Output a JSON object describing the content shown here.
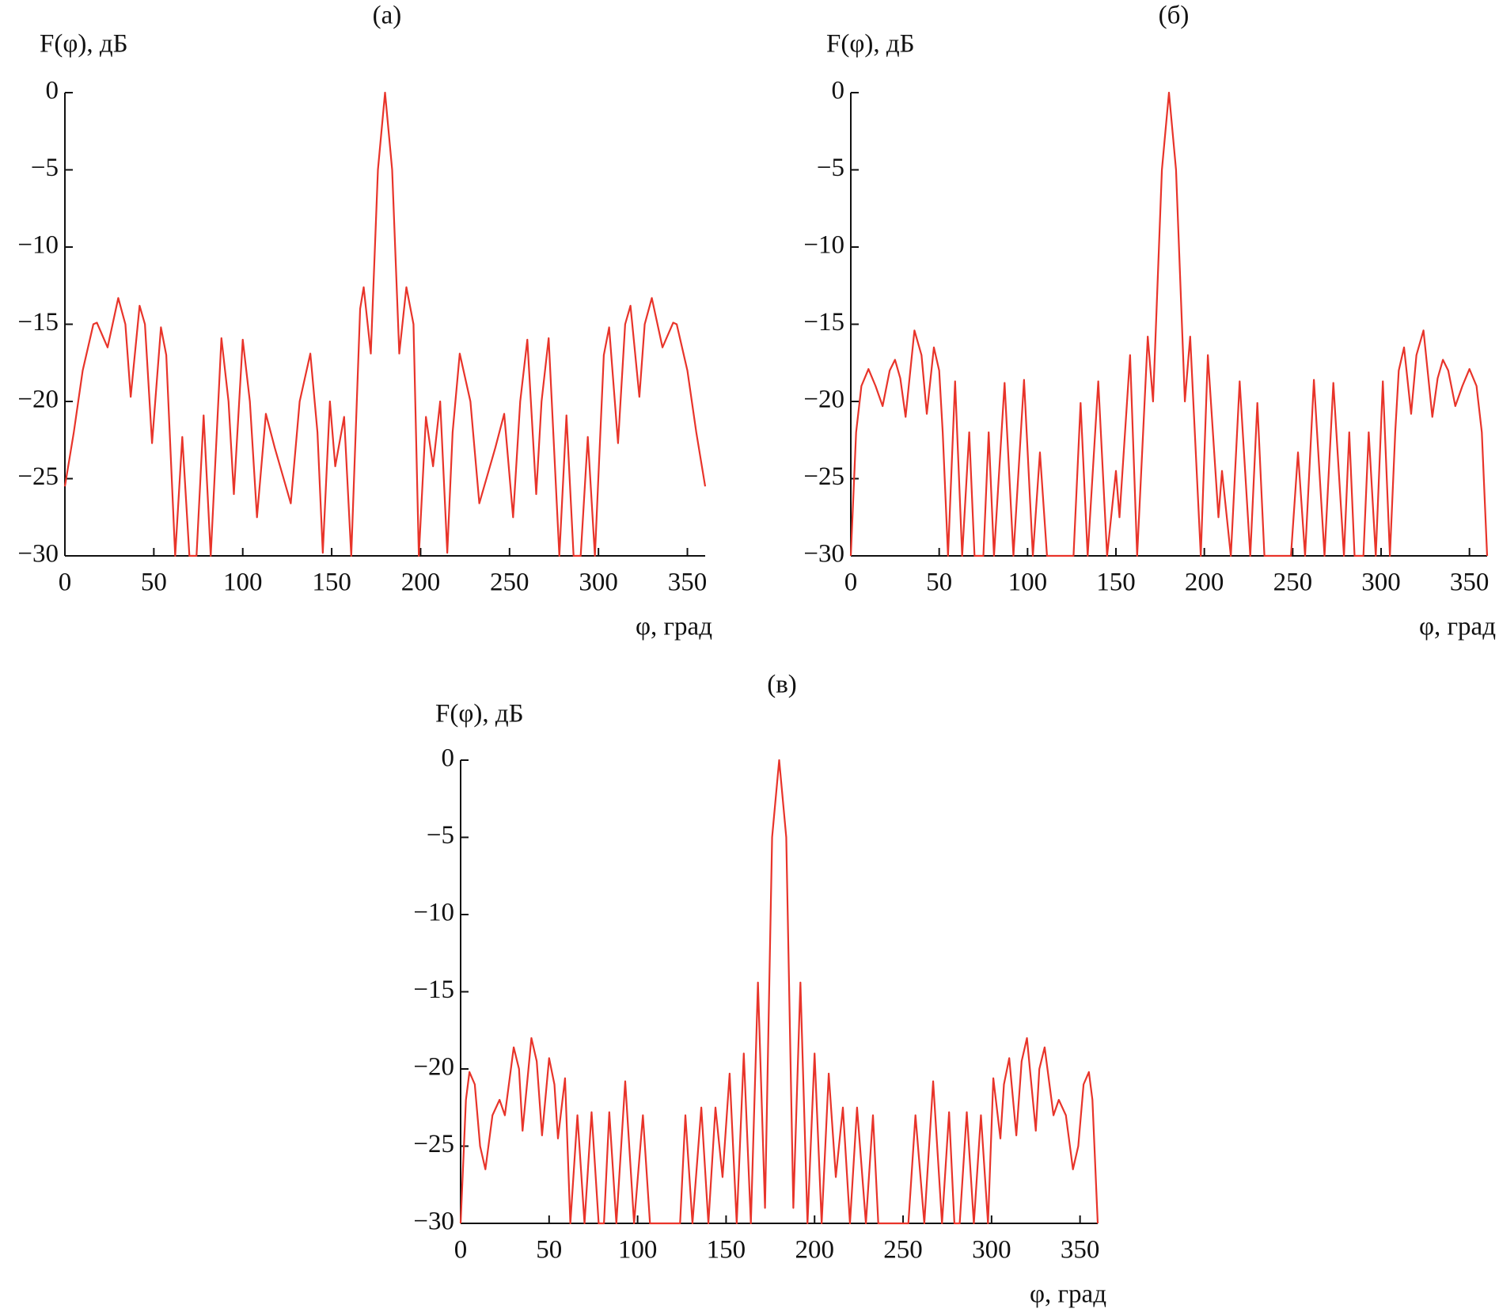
{
  "chart_data": [
    {
      "type": "line",
      "title": "(а)",
      "y_label": "F(φ), дБ",
      "x_label": "φ, град",
      "xlim": [
        0,
        360
      ],
      "ylim": [
        -30,
        0
      ],
      "xticks": [
        0,
        50,
        100,
        150,
        200,
        250,
        300,
        350
      ],
      "yticks": [
        0,
        {
          "value": -5,
          "label": "−5"
        },
        {
          "value": -10,
          "label": "−10"
        },
        {
          "value": -15,
          "label": "−15"
        },
        {
          "value": -20,
          "label": "−20"
        },
        {
          "value": -25,
          "label": "−25"
        },
        {
          "value": -30,
          "label": "−30"
        }
      ],
      "x": [
        0,
        5,
        10,
        16,
        18,
        24,
        30,
        34,
        37,
        42,
        45,
        49,
        54,
        57,
        62,
        66,
        70,
        74,
        78,
        82,
        88,
        92,
        95,
        100,
        104,
        108,
        113,
        118,
        123,
        127,
        132,
        138,
        142,
        145,
        149,
        152,
        157,
        161,
        166,
        168,
        172,
        176,
        180,
        184,
        188,
        192,
        196,
        199,
        203,
        207,
        211,
        215,
        218,
        222,
        228,
        233,
        237,
        242,
        247,
        252,
        256,
        260,
        265,
        268,
        272,
        278,
        282,
        286,
        290,
        294,
        298,
        303,
        306,
        311,
        315,
        318,
        323,
        326,
        330,
        336,
        342,
        344,
        350,
        355,
        360
      ],
      "series": [
        {
          "color": "#e8342a",
          "values": [
            -25.5,
            -22,
            -18,
            -15,
            -14.9,
            -16.5,
            -13.3,
            -15,
            -19.7,
            -13.8,
            -15,
            -22.7,
            -15.2,
            -17,
            -30,
            -22.3,
            -30,
            -30,
            -20.9,
            -30,
            -15.9,
            -20,
            -26,
            -16,
            -20,
            -27.5,
            -20.8,
            -23,
            -25,
            -26.6,
            -20,
            -16.9,
            -22,
            -29.8,
            -20,
            -24.2,
            -21,
            -30,
            -14,
            -12.6,
            -16.9,
            -5,
            0,
            -5,
            -16.9,
            -12.6,
            -15,
            -30,
            -21,
            -24.2,
            -20,
            -29.8,
            -22,
            -16.9,
            -20,
            -26.6,
            -25,
            -23,
            -20.8,
            -27.5,
            -20,
            -16,
            -26,
            -20,
            -15.9,
            -30,
            -20.9,
            -30,
            -30,
            -22.3,
            -30,
            -17,
            -15.2,
            -22.7,
            -15,
            -13.8,
            -19.7,
            -15,
            -13.3,
            -16.5,
            -14.9,
            -15,
            -18,
            -22,
            -25.5
          ]
        }
      ]
    },
    {
      "type": "line",
      "title": "(б)",
      "y_label": "F(φ), дБ",
      "x_label": "φ, град",
      "xlim": [
        0,
        360
      ],
      "ylim": [
        -30,
        0
      ],
      "xticks": [
        0,
        50,
        100,
        150,
        200,
        250,
        300,
        350
      ],
      "yticks": [
        0,
        {
          "value": -5,
          "label": "−5"
        },
        {
          "value": -10,
          "label": "−10"
        },
        {
          "value": -15,
          "label": "−15"
        },
        {
          "value": -20,
          "label": "−20"
        },
        {
          "value": -25,
          "label": "−25"
        },
        {
          "value": -30,
          "label": "−30"
        }
      ],
      "x": [
        0,
        3,
        6,
        10,
        14,
        18,
        22,
        25,
        28,
        31,
        36,
        40,
        43,
        47,
        50,
        52,
        55,
        59,
        63,
        67,
        70,
        75,
        78,
        81,
        87,
        92,
        98,
        103,
        107,
        111,
        126,
        130,
        134,
        140,
        145,
        150,
        152,
        158,
        162,
        168,
        171,
        176,
        180,
        184,
        189,
        192,
        198,
        202,
        208,
        210,
        215,
        220,
        226,
        230,
        234,
        249,
        253,
        257,
        262,
        268,
        273,
        279,
        282,
        285,
        290,
        293,
        297,
        301,
        305,
        308,
        310,
        313,
        317,
        320,
        324,
        329,
        332,
        335,
        338,
        342,
        346,
        350,
        354,
        357,
        360
      ],
      "series": [
        {
          "color": "#e8342a",
          "values": [
            -30,
            -22,
            -19,
            -17.9,
            -19,
            -20.3,
            -18,
            -17.3,
            -18.5,
            -21,
            -15.4,
            -17,
            -20.8,
            -16.5,
            -18,
            -22,
            -30,
            -18.7,
            -30,
            -22,
            -30,
            -30,
            -22,
            -30,
            -18.8,
            -30,
            -18.6,
            -30,
            -23.3,
            -30,
            -30,
            -20.1,
            -30,
            -18.7,
            -30,
            -24.5,
            -27.5,
            -17,
            -30,
            -15.8,
            -20,
            -5,
            0,
            -5,
            -20,
            -15.8,
            -30,
            -17,
            -27.5,
            -24.5,
            -30,
            -18.7,
            -30,
            -20.1,
            -30,
            -30,
            -23.3,
            -30,
            -18.6,
            -30,
            -18.8,
            -30,
            -22,
            -30,
            -30,
            -22,
            -30,
            -18.7,
            -30,
            -22,
            -18,
            -16.5,
            -20.8,
            -17,
            -15.4,
            -21,
            -18.5,
            -17.3,
            -18,
            -20.3,
            -19,
            -17.9,
            -19,
            -22,
            -30
          ]
        }
      ]
    },
    {
      "type": "line",
      "title": "(в)",
      "y_label": "F(φ), дБ",
      "x_label": "φ, град",
      "xlim": [
        0,
        360
      ],
      "ylim": [
        -30,
        0
      ],
      "xticks": [
        0,
        50,
        100,
        150,
        200,
        250,
        300,
        350
      ],
      "yticks": [
        0,
        {
          "value": -5,
          "label": "−5"
        },
        {
          "value": -10,
          "label": "−10"
        },
        {
          "value": -15,
          "label": "−15"
        },
        {
          "value": -20,
          "label": "−20"
        },
        {
          "value": -25,
          "label": "−25"
        },
        {
          "value": -30,
          "label": "−30"
        }
      ],
      "x": [
        0,
        3,
        5,
        8,
        11,
        14,
        18,
        22,
        25,
        30,
        33,
        35,
        40,
        43,
        46,
        50,
        53,
        55,
        59,
        62,
        66,
        70,
        74,
        78,
        81,
        84,
        88,
        93,
        98,
        103,
        107,
        124,
        127,
        131,
        136,
        140,
        144,
        148,
        152,
        156,
        160,
        164,
        168,
        172,
        176,
        180,
        184,
        188,
        192,
        196,
        200,
        204,
        208,
        212,
        216,
        220,
        224,
        229,
        233,
        236,
        253,
        257,
        262,
        267,
        272,
        276,
        279,
        282,
        286,
        290,
        294,
        298,
        301,
        305,
        307,
        310,
        314,
        317,
        320,
        325,
        327,
        330,
        335,
        338,
        342,
        346,
        349,
        352,
        355,
        357,
        360
      ],
      "series": [
        {
          "color": "#e8342a",
          "values": [
            -30,
            -22,
            -20.2,
            -21,
            -25,
            -26.5,
            -23,
            -22,
            -23,
            -18.6,
            -20,
            -24,
            -18,
            -19.5,
            -24.3,
            -19.3,
            -21,
            -24.5,
            -20.6,
            -30,
            -23,
            -30,
            -22.8,
            -30,
            -30,
            -22.8,
            -30,
            -20.8,
            -30,
            -23,
            -30,
            -30,
            -23,
            -30,
            -22.5,
            -30,
            -22.5,
            -27,
            -20.3,
            -30,
            -19,
            -30,
            -14.4,
            -29,
            -5,
            0,
            -5,
            -29,
            -14.4,
            -30,
            -19,
            -30,
            -20.3,
            -27,
            -22.5,
            -30,
            -22.5,
            -30,
            -23,
            -30,
            -30,
            -23,
            -30,
            -20.8,
            -30,
            -22.8,
            -30,
            -30,
            -22.8,
            -30,
            -23,
            -30,
            -20.6,
            -24.5,
            -21,
            -19.3,
            -24.3,
            -19.5,
            -18,
            -24,
            -20,
            -18.6,
            -23,
            -22,
            -23,
            -26.5,
            -25,
            -21,
            -20.2,
            -22,
            -30
          ]
        }
      ]
    }
  ]
}
